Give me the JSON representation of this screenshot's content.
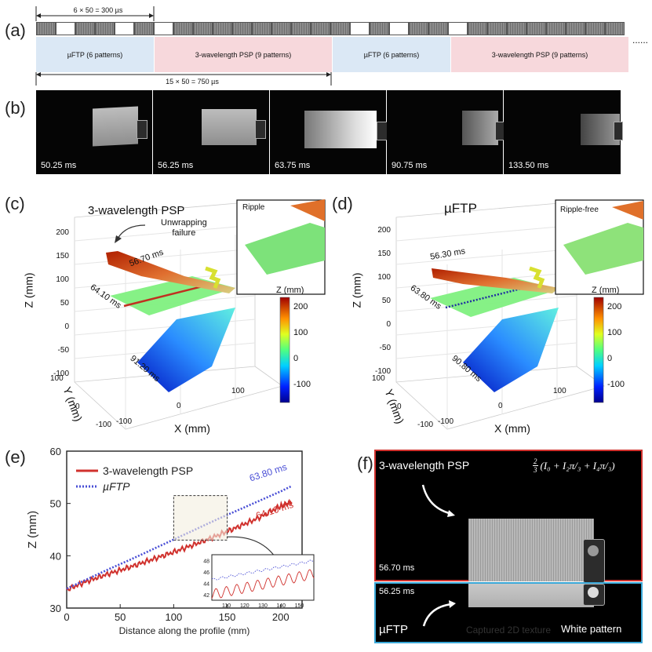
{
  "panel_labels": {
    "a": "(a)",
    "b": "(b)",
    "c": "(c)",
    "d": "(d)",
    "e": "(e)",
    "f": "(f)"
  },
  "a": {
    "dim_top": "6 × 50 = 300 µs",
    "dim_bottom": "15 × 50 = 750 µs",
    "bands": [
      {
        "label": "µFTP (6 patterns)",
        "color": "#dbe8f5"
      },
      {
        "label": "3-wavelength PSP (9 patterns)",
        "color": "#f7d8dc"
      },
      {
        "label": "µFTP (6 patterns)",
        "color": "#dbe8f5"
      },
      {
        "label": "3-wavelength PSP (9 patterns)",
        "color": "#f7d8dc"
      }
    ],
    "ellipsis": "......"
  },
  "b": {
    "timestamps": [
      "50.25 ms",
      "56.25 ms",
      "63.75 ms",
      "90.75 ms",
      "133.50 ms"
    ]
  },
  "c": {
    "title": "3-wavelength PSP",
    "annotation": "Unwrapping\nfailure",
    "inset": "Ripple",
    "times": [
      "56.70 ms",
      "64.10 ms",
      "91.20 ms"
    ],
    "zlabel": "Z (mm)",
    "ylabel": "Y (mm)",
    "xlabel": "X (mm)",
    "zticks": [
      "200",
      "150",
      "100",
      "50",
      "0",
      "-50",
      "-100"
    ],
    "yticks": [
      "100",
      "0",
      "-100"
    ],
    "xticks": [
      "-100",
      "0",
      "100"
    ],
    "colorbar": {
      "title": "Z (mm)",
      "ticks": [
        "200",
        "100",
        "0",
        "-100"
      ]
    }
  },
  "d": {
    "title": "µFTP",
    "inset": "Ripple-free",
    "times": [
      "56.30 ms",
      "63.80 ms",
      "90.80 ms"
    ],
    "zlabel": "Z (mm)",
    "ylabel": "Y (mm)",
    "xlabel": "X (mm)",
    "zticks": [
      "200",
      "150",
      "100",
      "50",
      "0",
      "-50",
      "-100"
    ],
    "yticks": [
      "100",
      "0",
      "-100"
    ],
    "xticks": [
      "-100",
      "0",
      "100"
    ],
    "colorbar": {
      "title": "Z (mm)",
      "ticks": [
        "200",
        "100",
        "0",
        "-100"
      ]
    }
  },
  "chart_data": {
    "type": "line",
    "title": "",
    "xlabel": "Distance along the profile (mm)",
    "ylabel": "Z (mm)",
    "xlim": [
      0,
      220
    ],
    "ylim": [
      30,
      60
    ],
    "xticks": [
      0,
      50,
      100,
      150,
      200
    ],
    "yticks": [
      30,
      40,
      50,
      60
    ],
    "series": [
      {
        "name": "3-wavelength PSP",
        "color": "#d0312d",
        "style": "solid",
        "x": [
          0,
          20,
          40,
          60,
          80,
          100,
          120,
          140,
          160,
          180,
          200,
          210
        ],
        "y": [
          33.5,
          35.2,
          36.6,
          37.9,
          39.3,
          40.7,
          42.2,
          43.8,
          45.5,
          47.3,
          49.5,
          50.3
        ]
      },
      {
        "name": "µFTP",
        "color": "#4a4fd6",
        "style": "dotted",
        "x": [
          0,
          20,
          40,
          60,
          80,
          100,
          120,
          140,
          160,
          180,
          200,
          210
        ],
        "y": [
          33.7,
          35.6,
          37.5,
          39.3,
          41.2,
          43.1,
          45.0,
          46.9,
          48.7,
          50.5,
          52.3,
          53.3
        ]
      }
    ],
    "annotations": [
      "63.80 ms",
      "64.10 ms"
    ],
    "inset": {
      "xlim": [
        102,
        158
      ],
      "ylim": [
        41,
        49
      ],
      "xticks": [
        "110",
        "120",
        "130",
        "140",
        "150"
      ],
      "yticks": [
        "48",
        "46",
        "44",
        "42"
      ]
    }
  },
  "f": {
    "top_label": "3-wavelength PSP",
    "formula_prefix": "2",
    "formula_den": "3",
    "formula": "(I₀ + I₂π/₃ + I₄π/₃)",
    "top_time": "56.70 ms",
    "bottom_time": "56.25 ms",
    "bottom_label": "µFTP",
    "white": "White pattern",
    "caption": "Captured 2D texture"
  }
}
